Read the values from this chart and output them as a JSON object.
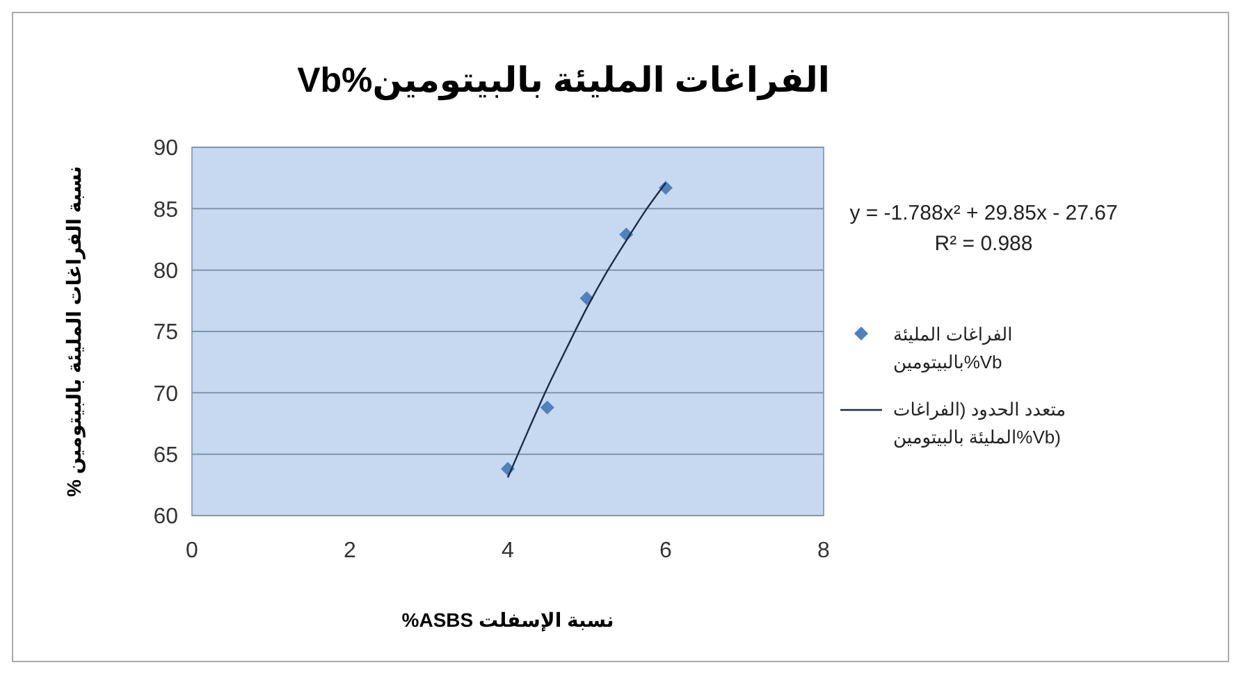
{
  "chart_data": {
    "type": "scatter",
    "title": "الفراغات المليئة بالبيتومين%Vb",
    "xlabel": "نسبة الإسفلت ASBS%",
    "ylabel": "نسبة الفراغات المليئة بالبيتومين %",
    "xlim": [
      0,
      8
    ],
    "xticks": [
      0,
      2,
      4,
      6,
      8
    ],
    "ylim": [
      60,
      90
    ],
    "yticks": [
      60,
      65,
      70,
      75,
      80,
      85,
      90
    ],
    "grid": "y",
    "legend": "right",
    "marker": "diamond",
    "annotations": [
      "y = -1.788x² + 29.85x - 27.67",
      "R² = 0.988"
    ],
    "series": [
      {
        "name": "الفراغات المليئة بالبيتومين%Vb",
        "color": "#4f81bd",
        "x": [
          4,
          4.5,
          5,
          5.5,
          6
        ],
        "values": [
          63.8,
          68.8,
          77.7,
          82.9,
          86.7
        ]
      },
      {
        "name": "متعدد الحدود (الفراغات المليئة بالبيتومين%Vb)",
        "type": "line",
        "color": "#1f2a44",
        "marker": "none",
        "line_style": "solid",
        "x": [
          4,
          4.25,
          4.5,
          4.75,
          5,
          5.25,
          5.5,
          5.75,
          6
        ],
        "values": [
          63.1,
          66.8,
          70.4,
          73.7,
          76.9,
          79.8,
          82.4,
          84.9,
          87.1
        ]
      }
    ]
  }
}
